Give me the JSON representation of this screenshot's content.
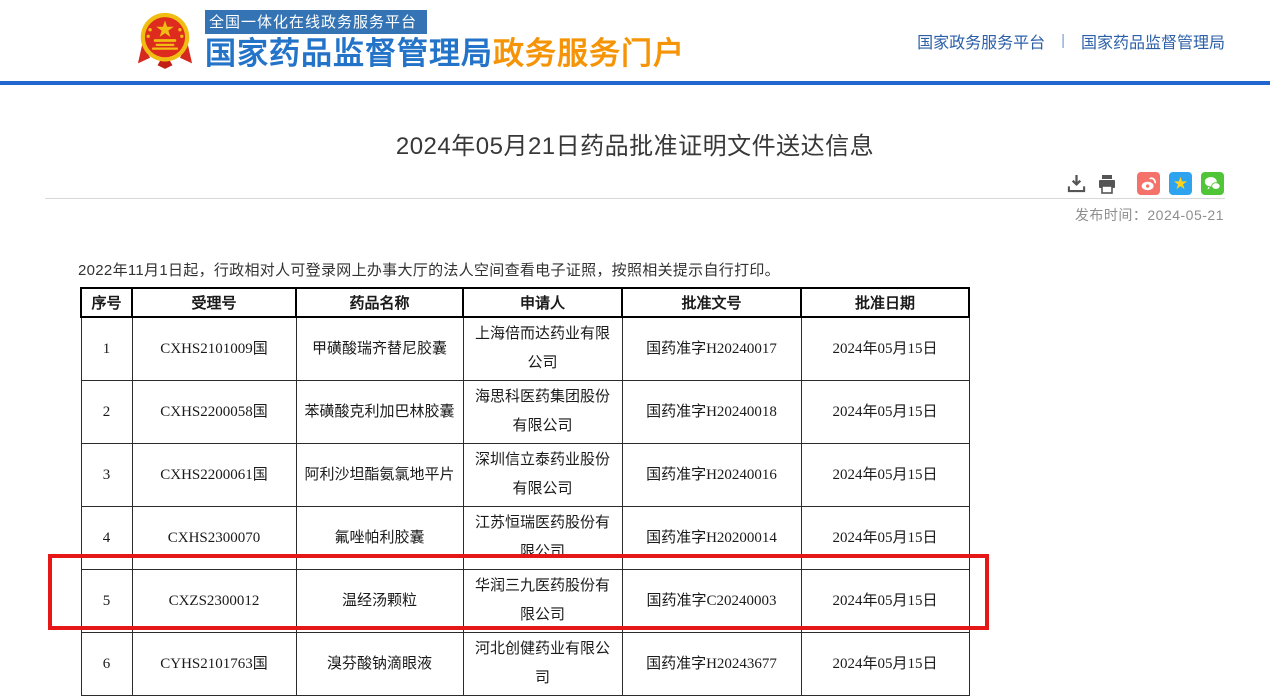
{
  "header": {
    "platform_banner": "全国一体化在线政务服务平台",
    "site_name_blue": "国家药品监督管理局",
    "site_name_orange": "政务服务门户",
    "nav": {
      "link_gov_platform": "国家政务服务平台",
      "divider": "|",
      "link_nmpa": "国家药品监督管理局"
    }
  },
  "article": {
    "title": "2024年05月21日药品批准证明文件送达信息",
    "publish_label": "发布时间：",
    "publish_date": "2024-05-21",
    "notice": "2022年11月1日起，行政相对人可登录网上办事大厅的法人空间查看电子证照，按照相关提示自行打印。"
  },
  "toolbar": {
    "icons": [
      "download-icon",
      "print-icon",
      "weibo-share-icon",
      "qzone-share-icon",
      "wechat-share-icon"
    ],
    "qzone_star_glyph": "★",
    "colors": {
      "weibo": "#f4726a",
      "qzone": "#2ea3ef",
      "wechat": "#4fc537",
      "tool_gray": "#555555",
      "accent_blue": "#2166cf",
      "highlight_red": "#e51717"
    }
  },
  "table": {
    "headers": [
      "序号",
      "受理号",
      "药品名称",
      "申请人",
      "批准文号",
      "批准日期"
    ],
    "rows": [
      [
        "1",
        "CXHS2101009国",
        "甲磺酸瑞齐替尼胶囊",
        "上海倍而达药业有限公司",
        "国药准字H20240017",
        "2024年05月15日"
      ],
      [
        "2",
        "CXHS2200058国",
        "苯磺酸克利加巴林胶囊",
        "海思科医药集团股份有限公司",
        "国药准字H20240018",
        "2024年05月15日"
      ],
      [
        "3",
        "CXHS2200061国",
        "阿利沙坦酯氨氯地平片",
        "深圳信立泰药业股份有限公司",
        "国药准字H20240016",
        "2024年05月15日"
      ],
      [
        "4",
        "CXHS2300070",
        "氟唑帕利胶囊",
        "江苏恒瑞医药股份有限公司",
        "国药准字H20200014",
        "2024年05月15日"
      ],
      [
        "5",
        "CXZS2300012",
        "温经汤颗粒",
        "华润三九医药股份有限公司",
        "国药准字C20240003",
        "2024年05月15日"
      ],
      [
        "6",
        "CYHS2101763国",
        "溴芬酸钠滴眼液",
        "河北创健药业有限公司",
        "国药准字H20243677",
        "2024年05月15日"
      ]
    ],
    "highlighted_row_number": "5"
  }
}
